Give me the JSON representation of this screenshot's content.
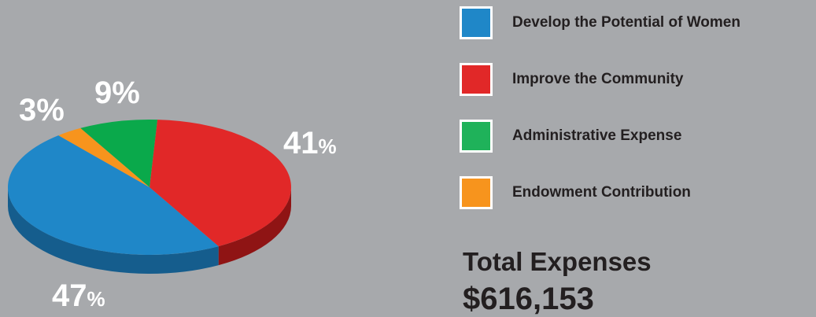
{
  "chart_data": {
    "type": "pie",
    "slices": [
      {
        "name": "Develop the Potential of Women",
        "value": 47,
        "color": "#1f87c8",
        "dark": "#155d8d",
        "label_num": "47",
        "label_sym": "%"
      },
      {
        "name": "Improve the Community",
        "value": 41,
        "color": "#e12828",
        "dark": "#8f1414",
        "label_num": "41",
        "label_sym": "%"
      },
      {
        "name": "Administrative Expense",
        "value": 9,
        "color": "#0aa94b",
        "dark": "#067030",
        "label_num": "9",
        "label_sym": "%"
      },
      {
        "name": "Endowment Contribution",
        "value": 3,
        "color": "#f7941d",
        "dark": "#b66a10",
        "label_num": "3",
        "label_sym": "%"
      }
    ],
    "legend_position": "right"
  },
  "legend": [
    {
      "label": "Develop the Potential of Women",
      "color": "#1f87c8"
    },
    {
      "label": "Improve the Community",
      "color": "#e12828"
    },
    {
      "label": "Administrative Expense",
      "color": "#1fb25a"
    },
    {
      "label": "Endowment Contribution",
      "color": "#f7941d"
    }
  ],
  "total": {
    "title": "Total Expenses",
    "value": "$616,153"
  }
}
